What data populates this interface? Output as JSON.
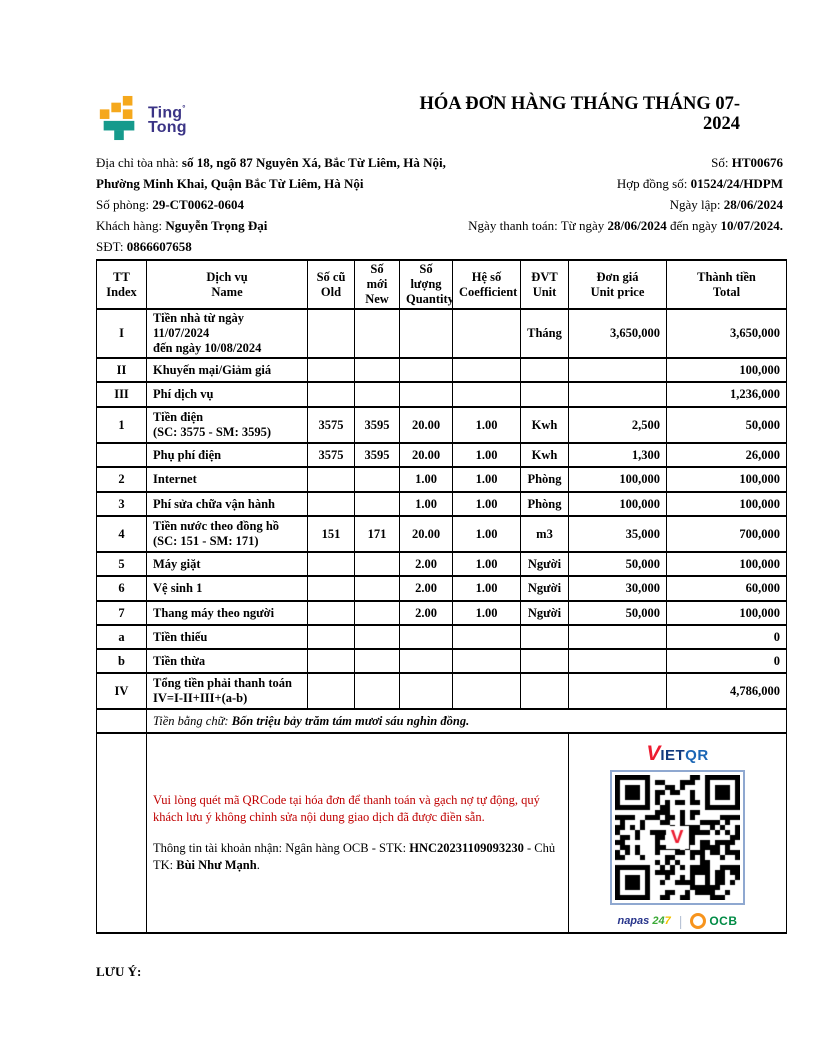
{
  "logo": {
    "line1": "Ting",
    "registered": "°",
    "line2": "Tong"
  },
  "title": {
    "line1": "HÓA ĐƠN HÀNG THÁNG THÁNG 07-",
    "line2": "2024"
  },
  "info": {
    "left": [
      {
        "label": "Địa chỉ tòa nhà: ",
        "value": "số 18, ngõ 87 Nguyên Xá, Bắc Từ Liêm, Hà Nội,"
      },
      {
        "label": "",
        "value": "Phường Minh Khai, Quận Bắc Từ Liêm, Hà Nội"
      },
      {
        "label": "Số phòng: ",
        "value": "29-CT0062-0604"
      },
      {
        "label": "Khách hàng: ",
        "value": "Nguyễn Trọng Đại"
      },
      {
        "label": "SĐT: ",
        "value": "0866607658"
      }
    ],
    "right": [
      {
        "label": "Số: ",
        "value": "HT00676"
      },
      {
        "label": "Hợp đồng số: ",
        "value": "01524/24/HDPM"
      },
      {
        "label": "Ngày lập: ",
        "value": "28/06/2024"
      },
      {
        "label": "Ngày thanh toán: Từ ngày ",
        "value": "28/06/2024",
        "label2": " đến ngày ",
        "value2": "10/07/2024."
      }
    ]
  },
  "table": {
    "headers": {
      "tt": "TT\nIndex",
      "name": "Dịch vụ\nName",
      "old": "Số cũ\nOld",
      "new": "Số mới\nNew",
      "qty": "Số lượng\nQuantity",
      "coef": "Hệ số\nCoefficient",
      "unit": "ĐVT\nUnit",
      "price": "Đơn giá\nUnit price",
      "total": "Thành tiền\nTotal"
    },
    "rows": [
      {
        "idx": "I",
        "name": "Tiền nhà từ ngày 11/07/2024\nđến ngày 10/08/2024",
        "old": "",
        "new": "",
        "qty": "",
        "coef": "",
        "unit": "Tháng",
        "price": "3,650,000",
        "total": "3,650,000"
      },
      {
        "idx": "II",
        "name": "Khuyến mại/Giảm giá",
        "old": "",
        "new": "",
        "qty": "",
        "coef": "",
        "unit": "",
        "price": "",
        "total": "100,000"
      },
      {
        "idx": "III",
        "name": "Phí dịch vụ",
        "old": "",
        "new": "",
        "qty": "",
        "coef": "",
        "unit": "",
        "price": "",
        "total": "1,236,000"
      },
      {
        "idx": "1",
        "name": "Tiền điện\n(SC: 3575 - SM: 3595)",
        "old": "3575",
        "new": "3595",
        "qty": "20.00",
        "coef": "1.00",
        "unit": "Kwh",
        "price": "2,500",
        "total": "50,000"
      },
      {
        "idx": "",
        "name": "Phụ phí điện",
        "old": "3575",
        "new": "3595",
        "qty": "20.00",
        "coef": "1.00",
        "unit": "Kwh",
        "price": "1,300",
        "total": "26,000"
      },
      {
        "idx": "2",
        "name": "Internet",
        "old": "",
        "new": "",
        "qty": "1.00",
        "coef": "1.00",
        "unit": "Phòng",
        "price": "100,000",
        "total": "100,000"
      },
      {
        "idx": "3",
        "name": "Phí sửa chữa vận hành",
        "old": "",
        "new": "",
        "qty": "1.00",
        "coef": "1.00",
        "unit": "Phòng",
        "price": "100,000",
        "total": "100,000"
      },
      {
        "idx": "4",
        "name": "Tiền nước theo đồng hồ\n(SC: 151 - SM: 171)",
        "old": "151",
        "new": "171",
        "qty": "20.00",
        "coef": "1.00",
        "unit": "m3",
        "price": "35,000",
        "total": "700,000"
      },
      {
        "idx": "5",
        "name": "Máy giặt",
        "old": "",
        "new": "",
        "qty": "2.00",
        "coef": "1.00",
        "unit": "Người",
        "price": "50,000",
        "total": "100,000"
      },
      {
        "idx": "6",
        "name": "Vệ sinh 1",
        "old": "",
        "new": "",
        "qty": "2.00",
        "coef": "1.00",
        "unit": "Người",
        "price": "30,000",
        "total": "60,000"
      },
      {
        "idx": "7",
        "name": "Thang máy theo người",
        "old": "",
        "new": "",
        "qty": "2.00",
        "coef": "1.00",
        "unit": "Người",
        "price": "50,000",
        "total": "100,000"
      },
      {
        "idx": "a",
        "name": "Tiền thiếu",
        "old": "",
        "new": "",
        "qty": "",
        "coef": "",
        "unit": "",
        "price": "",
        "total": "0"
      },
      {
        "idx": "b",
        "name": "Tiền thừa",
        "old": "",
        "new": "",
        "qty": "",
        "coef": "",
        "unit": "",
        "price": "",
        "total": "0"
      },
      {
        "idx": "IV",
        "name": "Tổng tiền phải thanh toán\nIV=I-II+III+(a-b)",
        "old": "",
        "new": "",
        "qty": "",
        "coef": "",
        "unit": "",
        "price": "",
        "total": "4,786,000"
      }
    ]
  },
  "words": {
    "label": "Tiền bằng chữ: ",
    "value": "Bốn triệu bảy trăm tám mươi sáu nghìn đồng."
  },
  "payment": {
    "notice": "Vui lòng quét mã QRCode tại hóa đơn để thanh toán và gạch nợ tự động, quý khách lưu ý không chỉnh sửa nội dung giao dịch đã được điền sẵn.",
    "account_label": "Thông tin tài khoản nhận: Ngân hàng OCB - STK: ",
    "account_number": "HNC20231109093230",
    "account_label2": " - Chủ TK: ",
    "account_holder": "Bùi Như Mạnh",
    "period": "."
  },
  "qr": {
    "brand_v": "V",
    "brand_iet": "IET",
    "brand_qr": "QR",
    "napas_name": "napas ",
    "napas_24": "24",
    "napas_7": "7",
    "ocb": "OCB"
  },
  "note": {
    "label": "LƯU Ý:"
  },
  "colors": {
    "notice_red": "#c00000",
    "logo_yellow": "#f5a81c",
    "logo_teal": "#159a8c",
    "logo_indigo": "#3b3486",
    "vietqr_red": "#ed1b2f",
    "vietqr_navy": "#123a7d",
    "vietqr_blue": "#1b66b5",
    "napas_blue": "#27348b",
    "ocb_green": "#008b45",
    "ocb_orange": "#f7941d"
  }
}
